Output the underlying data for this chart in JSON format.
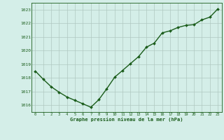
{
  "x": [
    0,
    1,
    2,
    3,
    4,
    5,
    6,
    7,
    8,
    9,
    10,
    11,
    12,
    13,
    14,
    15,
    16,
    17,
    18,
    19,
    20,
    21,
    22,
    23
  ],
  "y": [
    1018.5,
    1017.9,
    1017.35,
    1016.95,
    1016.6,
    1016.35,
    1016.1,
    1015.85,
    1016.4,
    1017.2,
    1018.05,
    1018.55,
    1019.05,
    1019.55,
    1020.25,
    1020.55,
    1021.3,
    1021.45,
    1021.7,
    1021.85,
    1021.9,
    1022.25,
    1022.45,
    1023.05
  ],
  "line_color": "#1a5c1a",
  "marker": "D",
  "marker_size": 2.0,
  "background_color": "#d4eee8",
  "plot_bg_color": "#d4eee8",
  "grid_color": "#b0c8c0",
  "xlabel": "Graphe pression niveau de la mer (hPa)",
  "xlabel_color": "#1a5c1a",
  "tick_color": "#1a5c1a",
  "ylim": [
    1015.5,
    1023.5
  ],
  "yticks": [
    1016,
    1017,
    1018,
    1019,
    1020,
    1021,
    1022,
    1023
  ],
  "xticks": [
    0,
    1,
    2,
    3,
    4,
    5,
    6,
    7,
    8,
    9,
    10,
    11,
    12,
    13,
    14,
    15,
    16,
    17,
    18,
    19,
    20,
    21,
    22,
    23
  ],
  "line_width": 1.0
}
